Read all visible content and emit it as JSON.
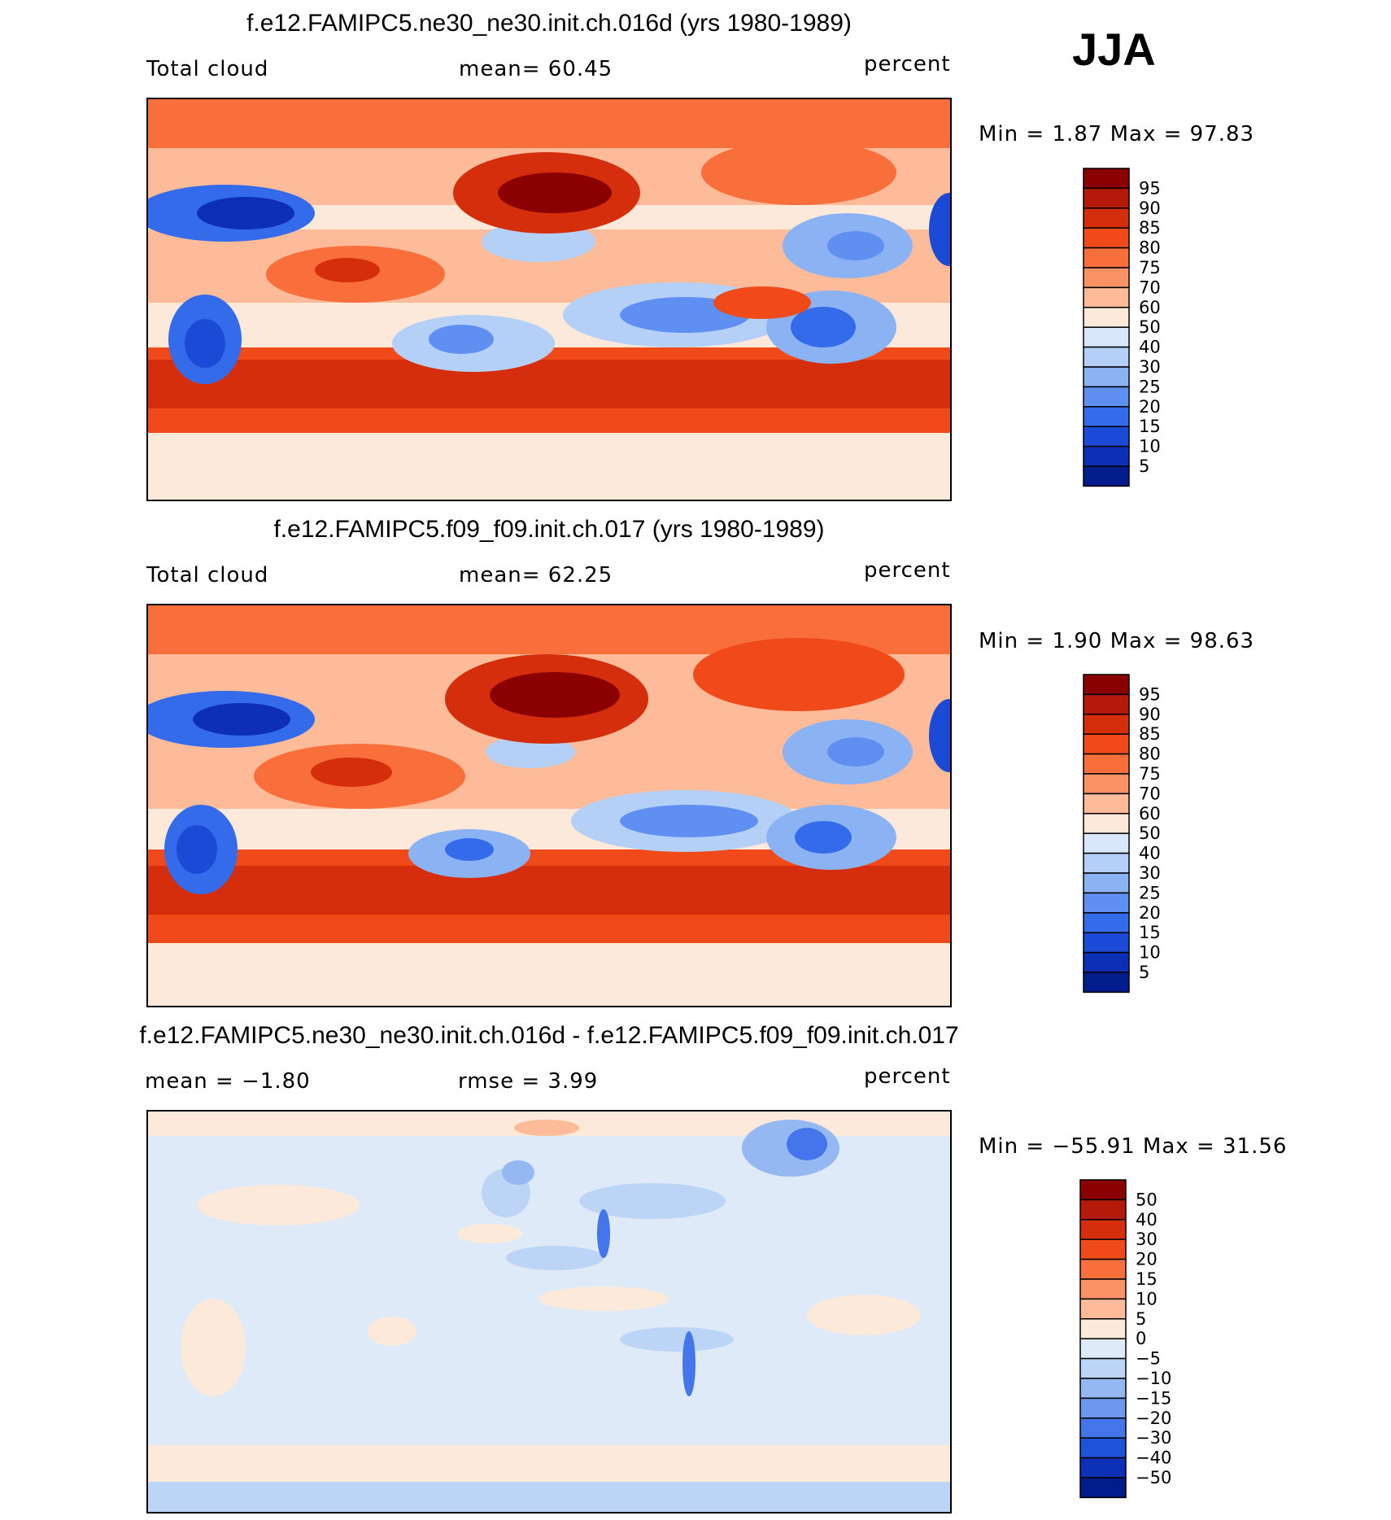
{
  "season": "JJA",
  "panels": [
    {
      "title": "f.e12.FAMIPC5.ne30_ne30.init.ch.016d (yrs 1980-1989)",
      "left_label": "Total cloud",
      "center_label": "mean=   60.45",
      "units": "percent",
      "minmax": "Min =     1.87  Max =    97.83",
      "colorbar_labels": [
        "95",
        "90",
        "85",
        "80",
        "75",
        "70",
        "60",
        "50",
        "40",
        "30",
        "25",
        "20",
        "15",
        "10",
        "5"
      ],
      "colorbar_colors": [
        "#8b0000",
        "#b31a0a",
        "#d42e0c",
        "#f14a1a",
        "#f96f3c",
        "#fb9266",
        "#fdbb9a",
        "#fde9da",
        "#d8e8fa",
        "#b4d0f7",
        "#8bb2f3",
        "#5f8ff0",
        "#346bea",
        "#1a4ad6",
        "#0c2fb5",
        "#021c8c"
      ]
    },
    {
      "title": "f.e12.FAMIPC5.f09_f09.init.ch.017 (yrs 1980-1989)",
      "left_label": "Total cloud",
      "center_label": "mean=   62.25",
      "units": "percent",
      "minmax": "Min =     1.90  Max =    98.63",
      "colorbar_labels": [
        "95",
        "90",
        "85",
        "80",
        "75",
        "70",
        "60",
        "50",
        "40",
        "30",
        "25",
        "20",
        "15",
        "10",
        "5"
      ],
      "colorbar_colors": [
        "#8b0000",
        "#b31a0a",
        "#d42e0c",
        "#f14a1a",
        "#f96f3c",
        "#fb9266",
        "#fdbb9a",
        "#fde9da",
        "#d8e8fa",
        "#b4d0f7",
        "#8bb2f3",
        "#5f8ff0",
        "#346bea",
        "#1a4ad6",
        "#0c2fb5",
        "#021c8c"
      ]
    },
    {
      "title": "f.e12.FAMIPC5.ne30_ne30.init.ch.016d - f.e12.FAMIPC5.f09_f09.init.ch.017",
      "left_label": "mean  =   −1.80",
      "center_label": "rmse  =     3.99",
      "units": "percent",
      "minmax": "Min  =  −55.91  Max  =    31.56",
      "colorbar_labels": [
        "50",
        "40",
        "30",
        "20",
        "15",
        "10",
        "5",
        "0",
        "−5",
        "−10",
        "−15",
        "−20",
        "−30",
        "−40",
        "−50"
      ],
      "colorbar_colors": [
        "#8b0000",
        "#b31a0a",
        "#d42e0c",
        "#f14a1a",
        "#f96f3c",
        "#fb9266",
        "#fdbb9a",
        "#fde9da",
        "#dfeaf9",
        "#bcd4f6",
        "#96b8f2",
        "#6e98ef",
        "#4475ea",
        "#1f52db",
        "#0d32b7",
        "#021c8c"
      ]
    }
  ],
  "chart_data": [
    {
      "type": "heatmap",
      "title": "f.e12.FAMIPC5.ne30_ne30.init.ch.016d (yrs 1980-1989)",
      "variable": "Total cloud",
      "units": "percent",
      "mean": 60.45,
      "min": 1.87,
      "max": 97.83,
      "levels": [
        5,
        10,
        15,
        20,
        25,
        30,
        40,
        50,
        60,
        70,
        75,
        80,
        85,
        90,
        95
      ]
    },
    {
      "type": "heatmap",
      "title": "f.e12.FAMIPC5.f09_f09.init.ch.017 (yrs 1980-1989)",
      "variable": "Total cloud",
      "units": "percent",
      "mean": 62.25,
      "min": 1.9,
      "max": 98.63,
      "levels": [
        5,
        10,
        15,
        20,
        25,
        30,
        40,
        50,
        60,
        70,
        75,
        80,
        85,
        90,
        95
      ]
    },
    {
      "type": "heatmap",
      "title": "f.e12.FAMIPC5.ne30_ne30.init.ch.016d - f.e12.FAMIPC5.f09_f09.init.ch.017",
      "units": "percent",
      "mean": -1.8,
      "rmse": 3.99,
      "min": -55.91,
      "max": 31.56,
      "levels": [
        -50,
        -40,
        -30,
        -20,
        -15,
        -10,
        -5,
        0,
        5,
        10,
        15,
        20,
        30,
        40,
        50
      ]
    }
  ]
}
